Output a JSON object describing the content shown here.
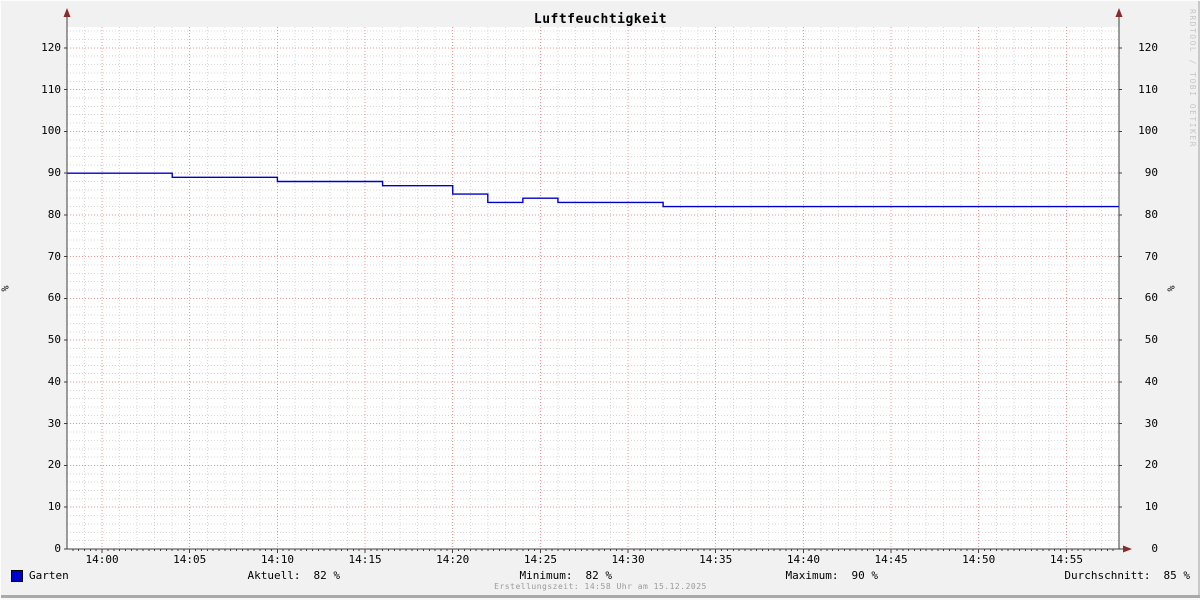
{
  "title": "Luftfeuchtigkeit",
  "watermark": "RRDTOOL / TOBI OETIKER",
  "footer": "Erstellungszeit: 14:58 Uhr am 15.12.2025",
  "legend": {
    "series_label": "Garten",
    "stats": [
      {
        "label": "Aktuell:",
        "value": "82 %"
      },
      {
        "label": "Minimum:",
        "value": "82 %"
      },
      {
        "label": "Maximum:",
        "value": "90 %"
      },
      {
        "label": "Durchschnitt:",
        "value": "85 %"
      }
    ]
  },
  "chart_data": {
    "type": "line",
    "title": "Luftfeuchtigkeit",
    "ylabel": "%",
    "ylim": [
      0,
      125
    ],
    "y_ticks": [
      0,
      10,
      20,
      30,
      40,
      50,
      60,
      70,
      80,
      90,
      100,
      110,
      120
    ],
    "y_minor_step": 2,
    "x_start": "13:58",
    "x_end": "14:58",
    "x_ticks": [
      "14:00",
      "14:05",
      "14:10",
      "14:15",
      "14:20",
      "14:25",
      "14:30",
      "14:35",
      "14:40",
      "14:45",
      "14:50",
      "14:55"
    ],
    "x_minor_step_min": 1,
    "grid": true,
    "legend_position": "bottom",
    "series": [
      {
        "name": "Garten",
        "color": "#0000cc",
        "steps": [
          [
            "13:58",
            90
          ],
          [
            "14:04",
            89
          ],
          [
            "14:10",
            88
          ],
          [
            "14:16",
            87
          ],
          [
            "14:20",
            85
          ],
          [
            "14:22",
            83
          ],
          [
            "14:24",
            84
          ],
          [
            "14:26",
            83
          ],
          [
            "14:32",
            82
          ],
          [
            "14:58",
            82
          ]
        ]
      }
    ]
  },
  "colors": {
    "background": "#f1f1f1",
    "plot_background": "#ffffff",
    "major_grid": "#f09595",
    "minor_grid": "#d7d7d7",
    "axis": "#404040",
    "arrow": "#8a2b2b",
    "line": "#0000cc",
    "watermark": "#c7c7c7",
    "footer_text": "#9a9a9a"
  }
}
